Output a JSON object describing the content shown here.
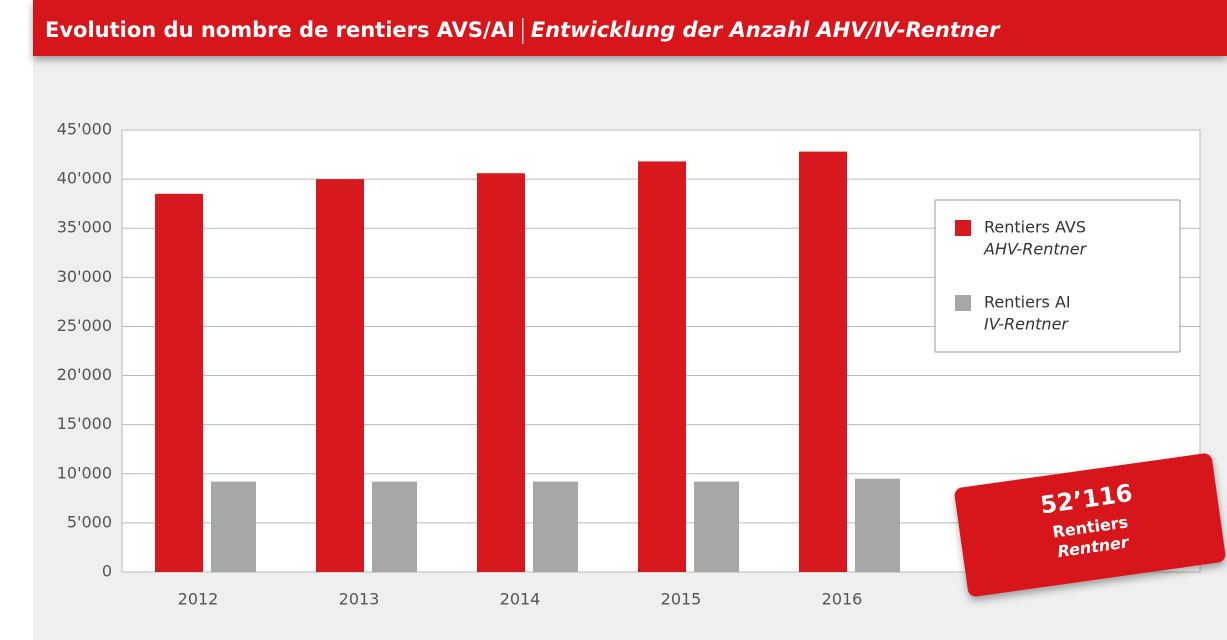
{
  "chart_data": {
    "type": "bar",
    "title": "Evolution du nombre de rentiers AVS/AI",
    "subtitle": "Entwicklung der Anzahl AHV/IV-Rentner",
    "categories": [
      "2012",
      "2013",
      "2014",
      "2015",
      "2016"
    ],
    "series": [
      {
        "name": "Rentiers AVS",
        "name_de": "AHV-Rentner",
        "color": "#d7191f",
        "values": [
          38500,
          40000,
          40600,
          41800,
          42800
        ]
      },
      {
        "name": "Rentiers AI",
        "name_de": "IV-Rentner",
        "color": "#a7a7a9",
        "values": [
          9200,
          9200,
          9200,
          9200,
          9500
        ]
      }
    ],
    "ylim": [
      0,
      45000
    ],
    "yticks": [
      0,
      {
        "value": 5000,
        "label": "5'000"
      },
      {
        "value": 10000,
        "label": "10'000"
      },
      {
        "value": 15000,
        "label": "15'000"
      },
      {
        "value": 20000,
        "label": "20'000"
      },
      {
        "value": 25000,
        "label": "25'000"
      },
      {
        "value": 30000,
        "label": "30'000"
      },
      {
        "value": 35000,
        "label": "35'000"
      },
      {
        "value": 40000,
        "label": "40'000"
      },
      {
        "value": 45000,
        "label": "45'000"
      }
    ],
    "grid": true,
    "legend": "right",
    "annotation": {
      "value": "52’116",
      "line1": "Rentiers",
      "line2": "Rentner"
    }
  }
}
